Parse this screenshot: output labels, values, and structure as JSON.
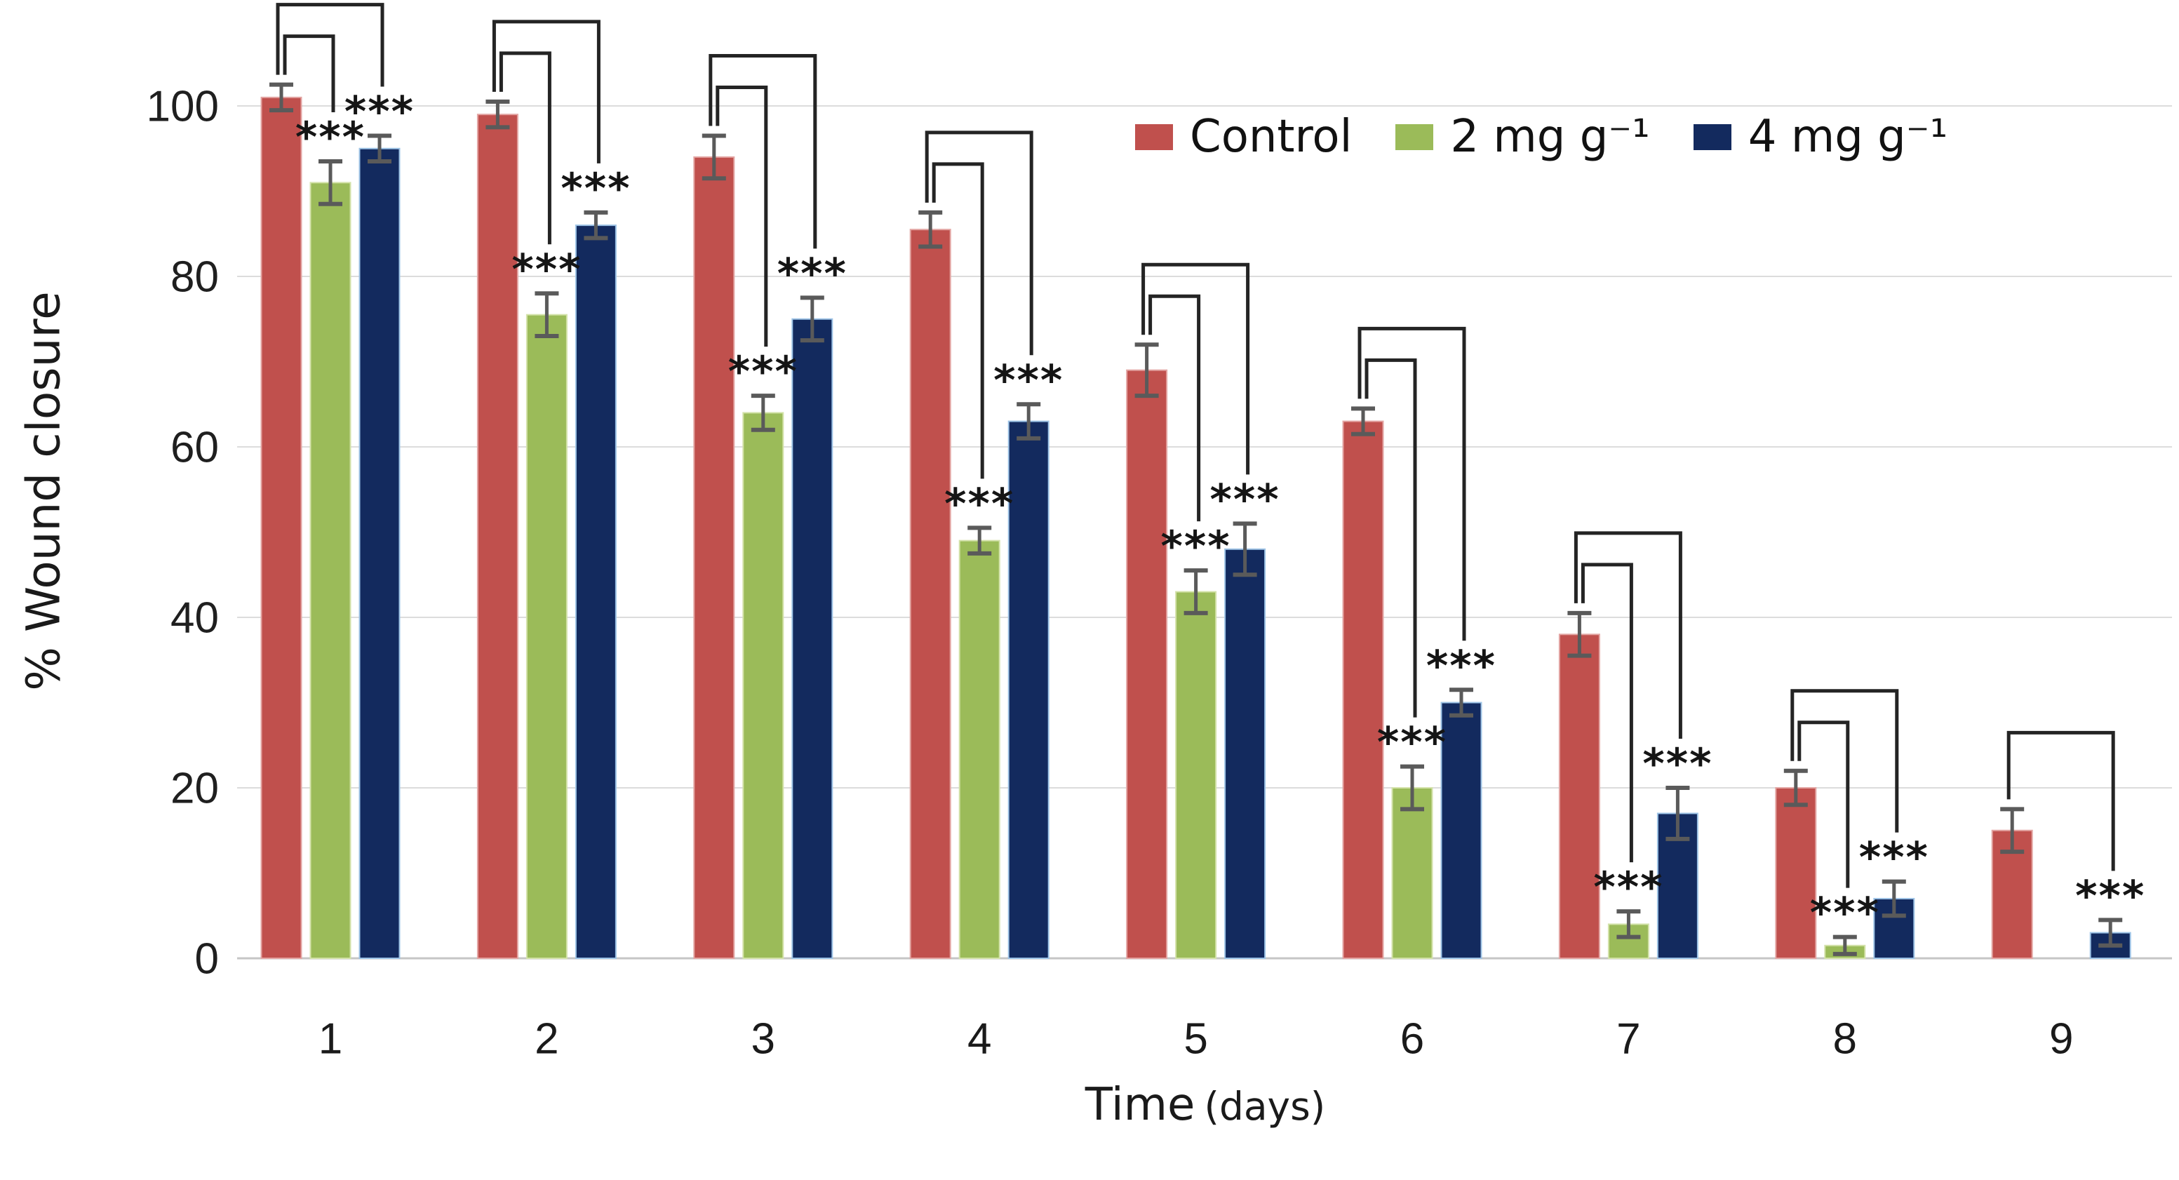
{
  "chart_data": {
    "type": "bar",
    "title": "",
    "ylabel": "% Wound closure",
    "xlabel_main": "Time",
    "xlabel_unit": "(days)",
    "categories": [
      "1",
      "2",
      "3",
      "4",
      "5",
      "6",
      "7",
      "8",
      "9"
    ],
    "y_ticks": [
      0,
      20,
      40,
      60,
      80,
      100
    ],
    "ylim": [
      0,
      112
    ],
    "grid": "horizontal-light",
    "legend_position": "top-right",
    "series": [
      {
        "name": "Control",
        "color": "#C0504D",
        "values": [
          101,
          99,
          94,
          85.5,
          69,
          63,
          38,
          20,
          15
        ],
        "errors": [
          1.5,
          1.5,
          2.5,
          2,
          3,
          1.5,
          2.5,
          2,
          2.5
        ]
      },
      {
        "name": "2 mg g⁻¹",
        "color": "#9BBB59",
        "values": [
          91,
          75.5,
          64,
          49,
          43,
          20,
          4,
          1.5,
          null
        ],
        "errors": [
          2.5,
          2.5,
          2,
          1.5,
          2.5,
          2.5,
          1.5,
          1,
          null
        ]
      },
      {
        "name": "4 mg g⁻¹",
        "color": "#132A5E",
        "values": [
          95,
          86,
          75,
          63,
          48,
          30,
          17,
          7,
          3
        ],
        "errors": [
          1.5,
          1.5,
          2.5,
          2,
          3,
          1.5,
          3,
          2,
          1.5
        ]
      }
    ],
    "significance": {
      "label": "***",
      "comparisons": [
        {
          "category": "1",
          "vs": [
            "2 mg g⁻¹",
            "4 mg g⁻¹"
          ]
        },
        {
          "category": "2",
          "vs": [
            "2 mg g⁻¹",
            "4 mg g⁻¹"
          ]
        },
        {
          "category": "3",
          "vs": [
            "2 mg g⁻¹",
            "4 mg g⁻¹"
          ]
        },
        {
          "category": "4",
          "vs": [
            "2 mg g⁻¹",
            "4 mg g⁻¹"
          ]
        },
        {
          "category": "5",
          "vs": [
            "2 mg g⁻¹",
            "4 mg g⁻¹"
          ]
        },
        {
          "category": "6",
          "vs": [
            "2 mg g⁻¹",
            "4 mg g⁻¹"
          ]
        },
        {
          "category": "7",
          "vs": [
            "2 mg g⁻¹",
            "4 mg g⁻¹"
          ]
        },
        {
          "category": "8",
          "vs": [
            "2 mg g⁻¹",
            "4 mg g⁻¹"
          ]
        },
        {
          "category": "9",
          "vs": [
            "4 mg g⁻¹"
          ]
        }
      ]
    }
  }
}
